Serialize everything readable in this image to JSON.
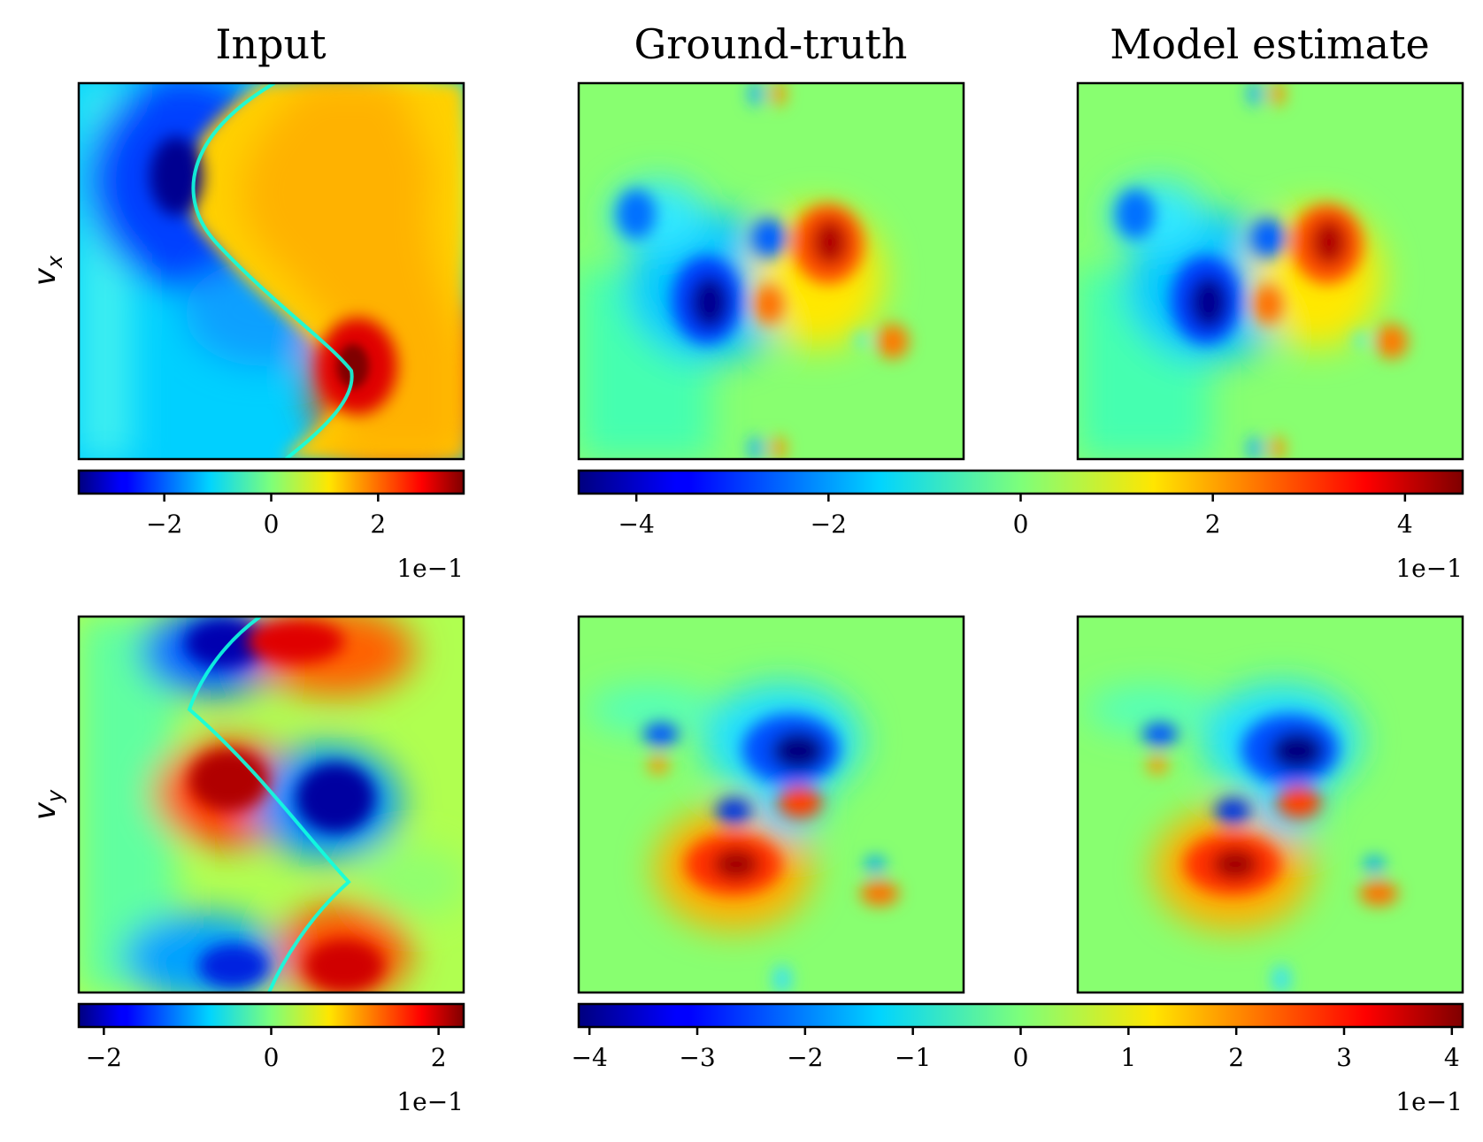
{
  "figure": {
    "column_titles": [
      "Input",
      "Ground-truth",
      "Model estimate"
    ],
    "row_labels": [
      {
        "base": "v",
        "sub": "x"
      },
      {
        "base": "v",
        "sub": "y"
      }
    ]
  },
  "chart_data": [
    {
      "type": "heatmap",
      "panel": "vx-input",
      "title": "Input",
      "row": "v_x",
      "colormap": "jet",
      "clim": [
        -0.36,
        0.36
      ],
      "colorbar": {
        "ticks": [
          -2,
          0,
          2
        ],
        "tick_labels": [
          "−2",
          "0",
          "2"
        ],
        "scale_label": "1e−1"
      },
      "grid": false,
      "structure": "S-shaped front: negative values left of the front (minimum about -0.36 near upper left), positive values right of it (maximum about 0.36 near lower right)"
    },
    {
      "type": "heatmap",
      "panel": "vx-ground-truth",
      "title": "Ground-truth",
      "row": "v_x",
      "colormap": "jet",
      "clim": [
        -0.46,
        0.46
      ],
      "colorbar": {
        "ticks": [
          -4,
          -2,
          0,
          2,
          4
        ],
        "tick_labels": [
          "−4",
          "−2",
          "0",
          "2",
          "4"
        ],
        "scale_label": "1e−1",
        "shared_with": [
          "vx-model-estimate"
        ]
      },
      "grid": false,
      "structure": "localized vortex blobs: strong negative blob (about -0.42), positive blob (about 0.38), several smaller blobs near zero background"
    },
    {
      "type": "heatmap",
      "panel": "vx-model-estimate",
      "title": "Model estimate",
      "row": "v_x",
      "colormap": "jet",
      "clim": [
        -0.46,
        0.46
      ],
      "grid": false,
      "structure": "nearly identical to ground-truth field"
    },
    {
      "type": "heatmap",
      "panel": "vy-input",
      "row": "v_y",
      "colormap": "jet",
      "clim": [
        -0.23,
        0.23
      ],
      "colorbar": {
        "ticks": [
          -2,
          0,
          2
        ],
        "tick_labels": [
          "−2",
          "0",
          "2"
        ],
        "scale_label": "1e−1"
      },
      "grid": false,
      "structure": "S-shaped front with alternating positive and negative lobes (extremes about ±0.22)"
    },
    {
      "type": "heatmap",
      "panel": "vy-ground-truth",
      "row": "v_y",
      "colormap": "jet",
      "clim": [
        -0.41,
        0.41
      ],
      "colorbar": {
        "ticks": [
          -4,
          -3,
          -2,
          -1,
          0,
          1,
          2,
          3,
          4
        ],
        "tick_labels": [
          "−4",
          "−3",
          "−2",
          "−1",
          "0",
          "1",
          "2",
          "3",
          "4"
        ],
        "scale_label": "1e−1",
        "shared_with": [
          "vy-model-estimate"
        ]
      },
      "grid": false,
      "structure": "strong negative blob near upper center (about -0.40), positive blob lower left (about 0.38), smaller blobs on right"
    },
    {
      "type": "heatmap",
      "panel": "vy-model-estimate",
      "row": "v_y",
      "colormap": "jet",
      "clim": [
        -0.41,
        0.41
      ],
      "grid": false,
      "structure": "nearly identical to ground-truth field"
    }
  ]
}
